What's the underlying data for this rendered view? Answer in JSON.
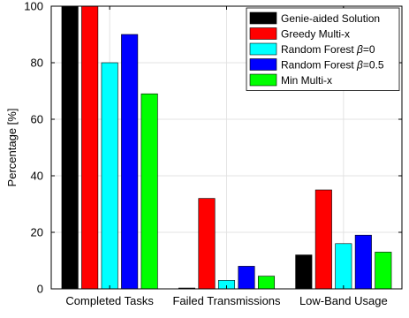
{
  "chart_data": {
    "type": "bar",
    "categories": [
      "Completed Tasks",
      "Failed Transmissions",
      "Low-Band Usage"
    ],
    "ylabel": "Percentage [%]",
    "xlabel": "",
    "ylim": [
      0,
      100
    ],
    "yticks": [
      0,
      20,
      40,
      60,
      80,
      100
    ],
    "grid": true,
    "legend_position": "top-right",
    "series": [
      {
        "name": "Genie-aided Solution",
        "name_parts": [
          "Genie-aided Solution"
        ],
        "color": "#000000",
        "values": [
          100,
          0.3,
          12
        ]
      },
      {
        "name": "Greedy Multi-x",
        "name_parts": [
          "Greedy Multi-x"
        ],
        "color": "#ff0000",
        "values": [
          100,
          32,
          35
        ]
      },
      {
        "name": "Random Forest β=0",
        "name_parts": [
          "Random Forest ",
          "β",
          "=0"
        ],
        "color": "#00ffff",
        "values": [
          80,
          3,
          16
        ]
      },
      {
        "name": "Random Forest β=0.5",
        "name_parts": [
          "Random Forest ",
          "β",
          "=0.5"
        ],
        "color": "#0000ff",
        "values": [
          90,
          8,
          19
        ]
      },
      {
        "name": "Min Multi-x",
        "name_parts": [
          "Min Multi-x"
        ],
        "color": "#00ff00",
        "values": [
          69,
          4.5,
          13
        ]
      }
    ]
  }
}
